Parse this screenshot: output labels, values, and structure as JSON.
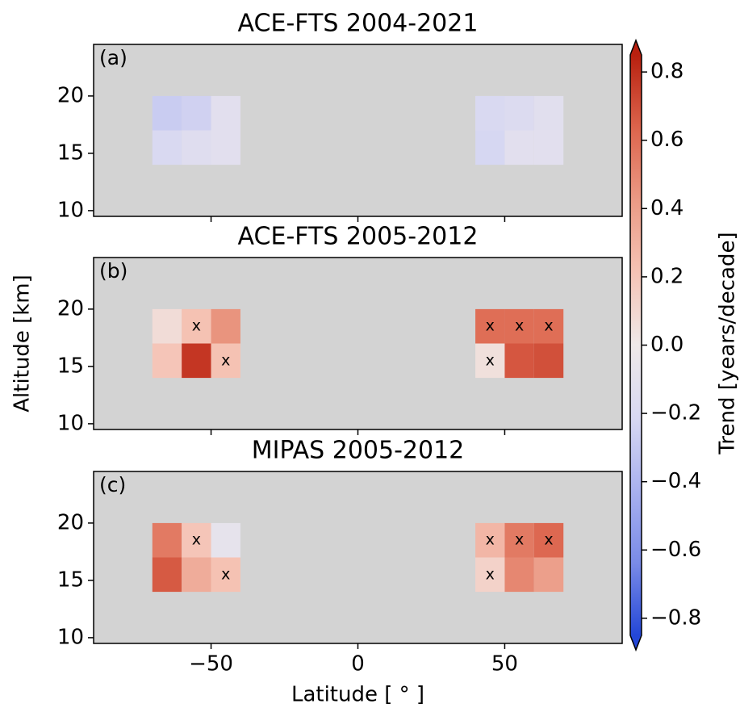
{
  "chart_data": [
    {
      "type": "heatmap",
      "title": "ACE-FTS 2004-2021",
      "panel_label": "(a)",
      "x_edges": [
        -70,
        -60,
        -50,
        -40,
        40,
        50,
        60,
        70
      ],
      "y_edges": [
        14,
        17,
        20
      ],
      "values": [
        [
          -0.2,
          -0.15,
          -0.12,
          null,
          -0.22,
          -0.12,
          -0.12
        ],
        [
          -0.28,
          -0.25,
          -0.12,
          null,
          -0.2,
          -0.18,
          -0.13
        ]
      ],
      "xlim": [
        -90,
        90
      ],
      "ylim": [
        9.5,
        24.5
      ],
      "xticks": [
        -50,
        0,
        50
      ],
      "yticks": [
        10,
        15,
        20
      ],
      "background": "#d3d3d3"
    },
    {
      "type": "heatmap",
      "title": "ACE-FTS 2005-2012",
      "panel_label": "(b)",
      "ylabel": "Altitude [km]",
      "x_edges": [
        -70,
        -60,
        -50,
        -40,
        40,
        50,
        60,
        70
      ],
      "y_edges": [
        14,
        17,
        20
      ],
      "values": [
        [
          0.2,
          0.78,
          0.22,
          null,
          0.05,
          0.68,
          0.7
        ],
        [
          0.07,
          0.22,
          0.45,
          null,
          0.6,
          0.6,
          0.6
        ]
      ],
      "markers": [
        [
          null,
          null,
          "x",
          null,
          "x",
          null,
          null
        ],
        [
          null,
          "x",
          null,
          null,
          "x",
          "x",
          "x"
        ]
      ],
      "xlim": [
        -90,
        90
      ],
      "ylim": [
        9.5,
        24.5
      ],
      "xticks": [
        -50,
        0,
        50
      ],
      "yticks": [
        10,
        15,
        20
      ],
      "background": "#d3d3d3"
    },
    {
      "type": "heatmap",
      "title": "MIPAS 2005-2012",
      "panel_label": "(c)",
      "xlabel": "Latitude [ ° ]",
      "x_edges": [
        -70,
        -60,
        -50,
        -40,
        40,
        50,
        60,
        70
      ],
      "y_edges": [
        14,
        17,
        20
      ],
      "values": [
        [
          0.67,
          0.33,
          0.22,
          null,
          0.13,
          0.5,
          0.4
        ],
        [
          0.55,
          0.2,
          -0.08,
          null,
          0.28,
          0.55,
          0.62
        ]
      ],
      "markers": [
        [
          null,
          null,
          "x",
          null,
          "x",
          null,
          null
        ],
        [
          null,
          "x",
          null,
          null,
          "x",
          "x",
          "x"
        ]
      ],
      "xlim": [
        -90,
        90
      ],
      "ylim": [
        9.5,
        24.5
      ],
      "xticks": [
        {
          "value": -50,
          "label": "−50"
        },
        0,
        50
      ],
      "yticks": [
        10,
        15,
        20
      ],
      "background": "#d3d3d3"
    }
  ],
  "colorbar": {
    "label": "Trend [years/decade]",
    "clim": [
      -0.85,
      0.85
    ],
    "extend": "both",
    "colors": [
      "#2447d7",
      "#7a8be8",
      "#a9b1ef",
      "#d8d8f2",
      "#efe9e8",
      "#f5c3b5",
      "#eb9a85",
      "#dc644c",
      "#b8200f"
    ],
    "ticks": [
      {
        "value": -0.8,
        "label": "−0.8"
      },
      {
        "value": -0.6,
        "label": "−0.6"
      },
      {
        "value": -0.4,
        "label": "−0.4"
      },
      {
        "value": -0.2,
        "label": "−0.2"
      },
      {
        "value": 0,
        "label": "0.0"
      },
      0.2,
      0.4,
      0.6,
      0.8
    ]
  }
}
